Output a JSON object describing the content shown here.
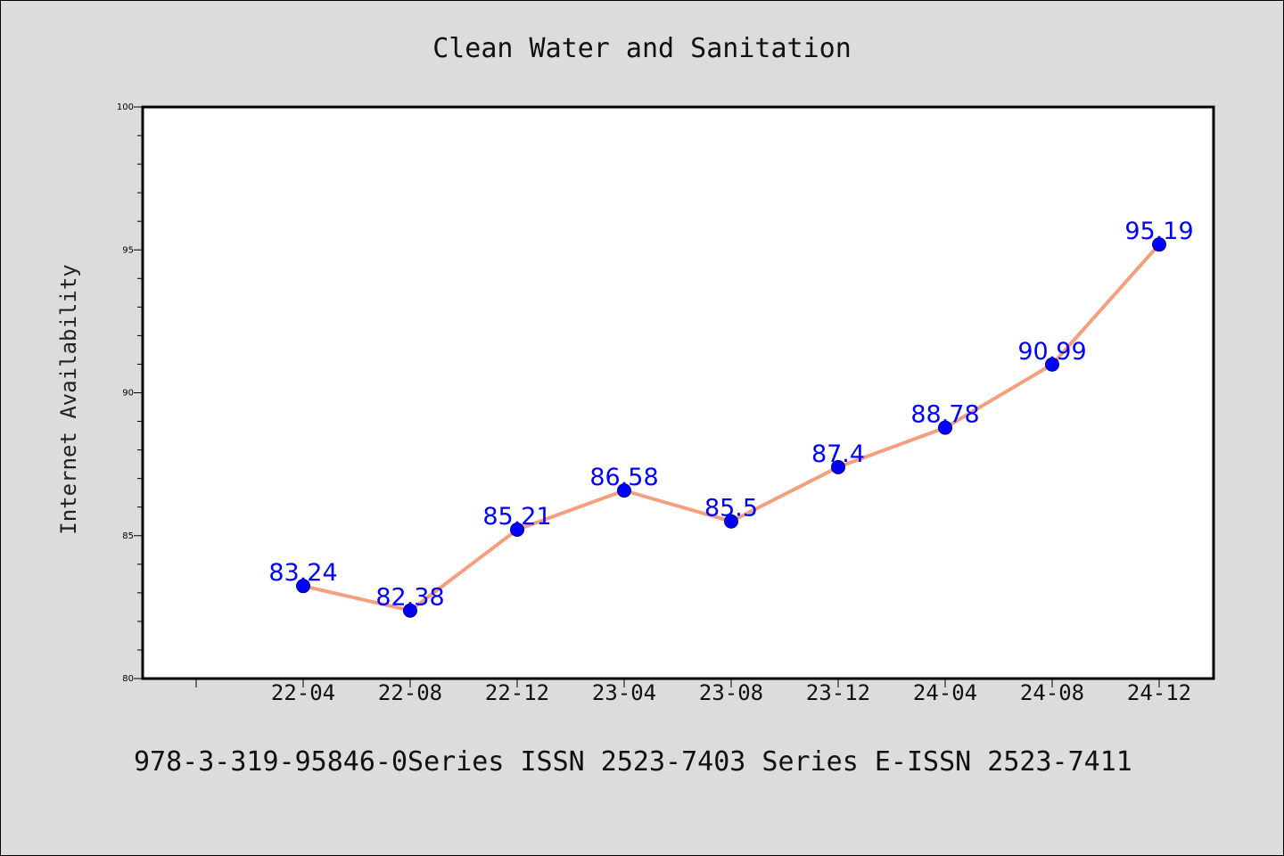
{
  "page": {
    "background": "#dcdcdc",
    "footer_text": "978-3-319-95846-0Series ISSN 2523-7403 Series E-ISSN 2523-7411"
  },
  "colors": {
    "line": "#f4a07f",
    "marker": "#0000ff",
    "marker_edge": "#000080",
    "data_label": "#0000ff",
    "plot_background": "#ffffff",
    "frame": "#000000"
  },
  "chart_data": {
    "type": "line",
    "title": "Clean Water and Sanitation",
    "xlabel": "",
    "ylabel": "Internet Availability",
    "categories": [
      "22-04",
      "22-08",
      "22-12",
      "23-04",
      "23-08",
      "23-12",
      "24-04",
      "24-08",
      "24-12"
    ],
    "series": [
      {
        "values": [
          83.24,
          82.38,
          85.21,
          86.58,
          85.5,
          87.4,
          88.78,
          90.99,
          95.19
        ],
        "labels": [
          "83.24",
          "82.38",
          "85.21",
          "86.58",
          "85.5",
          "87.4",
          "88.78",
          "90.99",
          "95.19"
        ]
      }
    ],
    "ylim": [
      80,
      100
    ],
    "yticks": [
      80,
      85,
      90,
      95,
      100
    ],
    "ytick_labels": [
      "80",
      "85",
      "90",
      "95",
      "100"
    ],
    "minor_ytick_step": 1,
    "grid": false,
    "legend": "none"
  }
}
